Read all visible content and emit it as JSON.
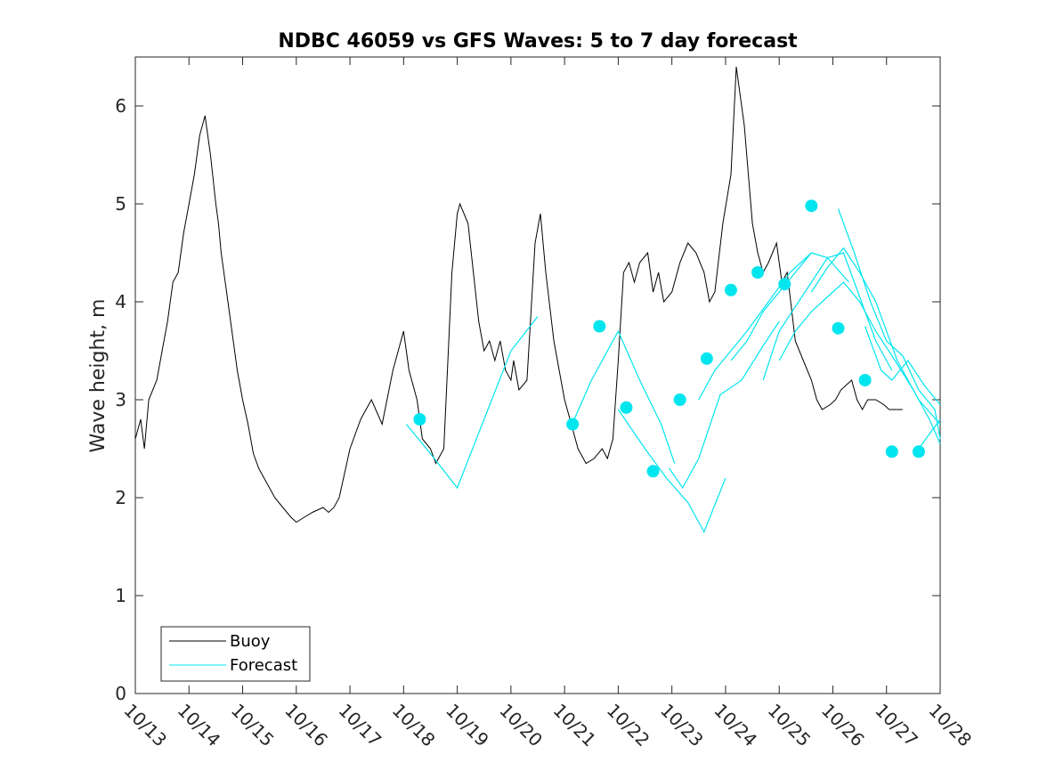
{
  "chart_data": {
    "type": "line",
    "title": "NDBC 46059 vs GFS Waves: 5 to 7 day forecast",
    "xlabel": "",
    "ylabel": "Wave height, m",
    "x_unit": "days since 10/13",
    "xlim": [
      0,
      15
    ],
    "ylim": [
      0,
      6.5
    ],
    "x_ticks": [
      0,
      1,
      2,
      3,
      4,
      5,
      6,
      7,
      8,
      9,
      10,
      11,
      12,
      13,
      14,
      15
    ],
    "x_tick_labels": [
      "10/13",
      "10/14",
      "10/15",
      "10/16",
      "10/17",
      "10/18",
      "10/19",
      "10/20",
      "10/21",
      "10/22",
      "10/23",
      "10/24",
      "10/25",
      "10/26",
      "10/27",
      "10/28"
    ],
    "y_ticks": [
      0,
      1,
      2,
      3,
      4,
      5,
      6
    ],
    "y_tick_labels": [
      "0",
      "1",
      "2",
      "3",
      "4",
      "5",
      "6"
    ],
    "grid": false,
    "legend": {
      "position": "bottom-left",
      "entries": [
        "Buoy",
        "Forecast"
      ]
    },
    "colors": {
      "buoy": "#000000",
      "forecast": "#00e5ee",
      "axes": "#262626"
    },
    "series": [
      {
        "name": "Buoy",
        "style": "line",
        "x": [
          0,
          0.1,
          0.17,
          0.25,
          0.4,
          0.5,
          0.6,
          0.7,
          0.8,
          0.9,
          1.0,
          1.1,
          1.2,
          1.3,
          1.4,
          1.5,
          1.55,
          1.6,
          1.7,
          1.8,
          1.9,
          2.0,
          2.1,
          2.2,
          2.3,
          2.4,
          2.5,
          2.6,
          2.75,
          2.9,
          3.0,
          3.15,
          3.3,
          3.5,
          3.6,
          3.7,
          3.8,
          4.0,
          4.2,
          4.4,
          4.6,
          4.8,
          5.0,
          5.1,
          5.25,
          5.35,
          5.5,
          5.6,
          5.75,
          5.9,
          6.0,
          6.05,
          6.2,
          6.3,
          6.4,
          6.5,
          6.6,
          6.7,
          6.8,
          6.9,
          7.0,
          7.05,
          7.15,
          7.3,
          7.45,
          7.55,
          7.65,
          7.8,
          7.9,
          8.0,
          8.1,
          8.25,
          8.4,
          8.55,
          8.7,
          8.8,
          8.9,
          9.0,
          9.1,
          9.2,
          9.3,
          9.4,
          9.55,
          9.65,
          9.75,
          9.85,
          10.0,
          10.15,
          10.3,
          10.45,
          10.6,
          10.7,
          10.8,
          10.95,
          11.1,
          11.2,
          11.35,
          11.5,
          11.6,
          11.7,
          11.8,
          11.95,
          12.05,
          12.15,
          12.3,
          12.45,
          12.6,
          12.7,
          12.8,
          12.95,
          13.05,
          13.15,
          13.25,
          13.35,
          13.45,
          13.55,
          13.65,
          13.8,
          13.95,
          14.05,
          14.15,
          14.3
        ],
        "y": [
          2.6,
          2.8,
          2.5,
          3.0,
          3.2,
          3.5,
          3.8,
          4.2,
          4.3,
          4.7,
          5.0,
          5.3,
          5.7,
          5.9,
          5.5,
          5.0,
          4.8,
          4.5,
          4.1,
          3.7,
          3.3,
          3.0,
          2.75,
          2.45,
          2.3,
          2.2,
          2.1,
          2.0,
          1.9,
          1.8,
          1.75,
          1.8,
          1.85,
          1.9,
          1.85,
          1.9,
          2.0,
          2.5,
          2.8,
          3.0,
          2.75,
          3.3,
          3.7,
          3.3,
          3.0,
          2.6,
          2.5,
          2.35,
          2.5,
          4.3,
          4.9,
          5.0,
          4.8,
          4.3,
          3.8,
          3.5,
          3.6,
          3.4,
          3.6,
          3.3,
          3.2,
          3.4,
          3.1,
          3.2,
          4.6,
          4.9,
          4.3,
          3.6,
          3.3,
          3.0,
          2.8,
          2.5,
          2.35,
          2.4,
          2.5,
          2.4,
          2.6,
          3.4,
          4.3,
          4.4,
          4.2,
          4.4,
          4.5,
          4.1,
          4.3,
          4.0,
          4.1,
          4.4,
          4.6,
          4.5,
          4.3,
          4.0,
          4.1,
          4.8,
          5.3,
          6.4,
          5.8,
          4.8,
          4.5,
          4.3,
          4.4,
          4.6,
          4.2,
          4.3,
          3.6,
          3.4,
          3.2,
          3.0,
          2.9,
          2.95,
          3.0,
          3.1,
          3.15,
          3.2,
          3.0,
          2.9,
          3.0,
          3.0,
          2.95,
          2.9,
          2.9,
          2.9
        ]
      },
      {
        "name": "Forecast",
        "style": "line",
        "segments": [
          {
            "x": [
              5.05,
              5.5,
              6.0,
              6.5,
              7.0,
              7.5
            ],
            "y": [
              2.75,
              2.45,
              2.1,
              2.8,
              3.5,
              3.85
            ]
          },
          {
            "x": [
              8.1,
              8.5,
              9.0,
              9.4,
              9.8,
              10.05
            ],
            "y": [
              2.7,
              3.2,
              3.7,
              3.2,
              2.75,
              2.35
            ]
          },
          {
            "x": [
              9.0,
              9.5,
              9.9,
              10.3,
              10.6,
              11.0
            ],
            "y": [
              2.9,
              2.5,
              2.2,
              1.95,
              1.65,
              2.2
            ]
          },
          {
            "x": [
              9.95,
              10.2,
              10.5,
              10.9,
              11.3,
              11.7,
              12.0
            ],
            "y": [
              2.3,
              2.1,
              2.4,
              3.05,
              3.2,
              3.55,
              3.8
            ]
          },
          {
            "x": [
              10.5,
              10.8,
              11.1,
              11.4,
              11.8,
              12.2,
              12.6
            ],
            "y": [
              3.0,
              3.3,
              3.5,
              3.7,
              4.0,
              4.3,
              4.5
            ]
          },
          {
            "x": [
              11.1,
              11.4,
              11.7,
              12.0,
              12.3,
              12.6,
              12.9,
              13.3
            ],
            "y": [
              3.4,
              3.6,
              3.9,
              4.1,
              4.3,
              4.5,
              4.45,
              4.2
            ]
          },
          {
            "x": [
              11.7,
              12.0,
              12.3,
              12.6,
              12.9,
              13.2,
              13.5,
              13.8,
              14.1
            ],
            "y": [
              3.2,
              3.7,
              3.95,
              4.2,
              4.45,
              4.5,
              4.05,
              3.6,
              3.3
            ]
          },
          {
            "x": [
              12.0,
              12.3,
              12.6,
              12.9,
              13.2,
              13.5,
              13.8,
              14.1,
              14.5,
              14.8,
              15.0
            ],
            "y": [
              3.4,
              3.7,
              3.9,
              4.05,
              4.2,
              4.0,
              3.7,
              3.45,
              3.1,
              2.8,
              2.55
            ]
          },
          {
            "x": [
              12.6,
              12.9,
              13.2,
              13.5,
              13.8,
              14.2,
              14.6,
              15.0
            ],
            "y": [
              4.1,
              4.35,
              4.55,
              4.3,
              4.0,
              3.4,
              3.0,
              2.75
            ]
          },
          {
            "x": [
              13.1,
              13.4,
              13.7,
              14.0,
              14.3,
              14.6,
              14.9,
              15.0
            ],
            "y": [
              4.95,
              4.5,
              4.0,
              3.6,
              3.45,
              3.1,
              2.9,
              2.6
            ]
          },
          {
            "x": [
              13.6,
              13.9,
              14.1,
              14.4,
              14.7,
              15.0
            ],
            "y": [
              3.75,
              3.3,
              3.2,
              3.4,
              3.15,
              2.95
            ]
          },
          {
            "x": [
              14.6,
              14.8,
              15.0
            ],
            "y": [
              2.5,
              2.65,
              2.8
            ]
          }
        ]
      },
      {
        "name": "Forecast markers",
        "style": "marker",
        "x": [
          5.3,
          8.15,
          8.65,
          9.15,
          9.65,
          10.15,
          10.65,
          11.1,
          11.6,
          12.1,
          12.6,
          13.1,
          13.6,
          14.1,
          14.6
        ],
        "y": [
          2.8,
          2.75,
          3.75,
          2.92,
          2.27,
          3.0,
          3.42,
          4.12,
          4.3,
          4.18,
          4.98,
          3.73,
          3.2,
          2.47,
          2.47
        ]
      }
    ]
  }
}
